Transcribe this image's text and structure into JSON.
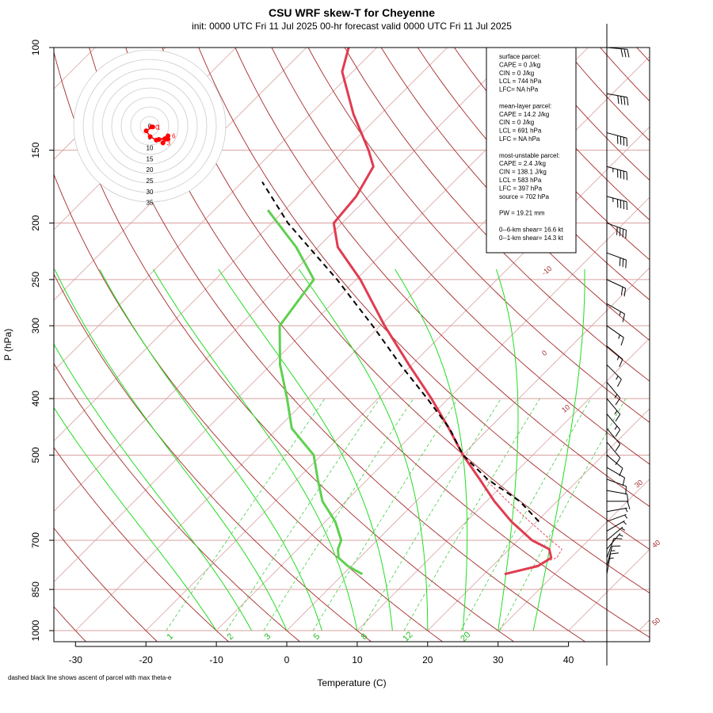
{
  "title": "CSU WRF skew-T for Cheyenne",
  "subtitle": "init: 0000 UTC Fri 11 Jul 2025    00-hr forecast valid 0000 UTC Fri 11 Jul 2025",
  "footnote": "dashed black line shows ascent of parcel with max theta-e",
  "chart_data": {
    "type": "skewt",
    "xlabel": "Temperature (C)",
    "ylabel": "P (hPa)",
    "xlim": [
      -33,
      45
    ],
    "ylim": [
      1000,
      100
    ],
    "x_ticks": [
      -30,
      -20,
      -10,
      0,
      10,
      20,
      30,
      40
    ],
    "p_ticks": [
      100,
      150,
      200,
      250,
      300,
      400,
      500,
      700,
      850,
      1000
    ],
    "isobars": [
      100,
      150,
      200,
      250,
      300,
      400,
      500,
      700,
      850,
      1000
    ],
    "dry_adiabat_labels": [
      "-10",
      "0",
      "10",
      "30",
      "40",
      "50"
    ],
    "mixing_ratio_labels": [
      "1",
      "2",
      "3",
      "5",
      "8",
      "12",
      "20"
    ],
    "temperature": [
      {
        "p": 800,
        "t": 22.9
      },
      {
        "p": 775,
        "t": 26.5
      },
      {
        "p": 750,
        "t": 27.2
      },
      {
        "p": 725,
        "t": 25.7
      },
      {
        "p": 700,
        "t": 22.0
      },
      {
        "p": 650,
        "t": 16.4
      },
      {
        "p": 600,
        "t": 11.1
      },
      {
        "p": 550,
        "t": 5.9
      },
      {
        "p": 500,
        "t": 0.1
      },
      {
        "p": 450,
        "t": -5.7
      },
      {
        "p": 400,
        "t": -12.4
      },
      {
        "p": 350,
        "t": -20.4
      },
      {
        "p": 300,
        "t": -29.4
      },
      {
        "p": 250,
        "t": -39.4
      },
      {
        "p": 220,
        "t": -47.2
      },
      {
        "p": 200,
        "t": -51.2
      },
      {
        "p": 180,
        "t": -51.8
      },
      {
        "p": 160,
        "t": -53.6
      },
      {
        "p": 150,
        "t": -56.6
      },
      {
        "p": 130,
        "t": -63.9
      },
      {
        "p": 110,
        "t": -71.5
      },
      {
        "p": 100,
        "t": -74.0
      }
    ],
    "dewpoint": [
      {
        "p": 800,
        "t": 2.7
      },
      {
        "p": 775,
        "t": -0.5
      },
      {
        "p": 750,
        "t": -3.0
      },
      {
        "p": 725,
        "t": -4.3
      },
      {
        "p": 700,
        "t": -5.1
      },
      {
        "p": 650,
        "t": -8.6
      },
      {
        "p": 600,
        "t": -13.3
      },
      {
        "p": 550,
        "t": -17.1
      },
      {
        "p": 500,
        "t": -21.1
      },
      {
        "p": 450,
        "t": -28.0
      },
      {
        "p": 400,
        "t": -32.9
      },
      {
        "p": 350,
        "t": -38.7
      },
      {
        "p": 300,
        "t": -44.3
      },
      {
        "p": 250,
        "t": -46.0
      },
      {
        "p": 220,
        "t": -53.1
      },
      {
        "p": 190,
        "t": -62.4
      }
    ],
    "parcel_theta_e": [
      {
        "p": 650,
        "t": 20.3
      },
      {
        "p": 600,
        "t": 14.7
      },
      {
        "p": 550,
        "t": 7.0
      },
      {
        "p": 500,
        "t": 0.1
      },
      {
        "p": 450,
        "t": -5.6
      },
      {
        "p": 400,
        "t": -13.0
      },
      {
        "p": 350,
        "t": -21.6
      },
      {
        "p": 300,
        "t": -31.1
      },
      {
        "p": 250,
        "t": -42.7
      },
      {
        "p": 200,
        "t": -57.7
      },
      {
        "p": 170,
        "t": -67.2
      }
    ],
    "parcel_surface": [
      {
        "p": 800,
        "t": 22.9
      },
      {
        "p": 775,
        "t": 26.0
      },
      {
        "p": 750,
        "t": 28.0
      },
      {
        "p": 725,
        "t": 27.5
      },
      {
        "p": 700,
        "t": 24.7
      },
      {
        "p": 650,
        "t": 19.0
      },
      {
        "p": 600,
        "t": 13.0
      },
      {
        "p": 550,
        "t": 6.7
      }
    ],
    "hodograph": {
      "rings": [
        "0",
        "5",
        "10",
        "15",
        "20",
        "25",
        "30",
        "35"
      ],
      "points": [
        {
          "label": "0",
          "u": 0.7,
          "v": -0.4
        },
        {
          "label": "1",
          "u": 1.2,
          "v": -0.4
        },
        {
          "label": "",
          "u": -1.4,
          "v": -1.9
        },
        {
          "label": "",
          "u": 0.2,
          "v": -4.2
        },
        {
          "label": "1",
          "u": 2.6,
          "v": -5.6
        },
        {
          "label": "2",
          "u": 3.6,
          "v": -5.3
        },
        {
          "label": "",
          "u": 6.0,
          "v": -5.0
        },
        {
          "label": "6",
          "u": 7.2,
          "v": -3.9
        },
        {
          "label": "",
          "u": 7.2,
          "v": -5.2
        },
        {
          "label": "3",
          "u": 5.2,
          "v": -6.7
        }
      ]
    },
    "info_box": [
      "surface parcel:",
      "CAPE = 0 J/kg",
      "CIN = 0 J/kg",
      "LCL = 744 hPa",
      "LFC= NA hPa",
      "",
      "mean-layer parcel:",
      "CAPE = 14.2 J/kg",
      "CIN = 0 J/kg",
      "LCL = 691 hPa",
      "LFC = NA hPa",
      "",
      "most-unstable parcel:",
      "CAPE = 2.4 J/kg",
      "CIN = 138.1 J/kg",
      "LCL = 583 hPa",
      "LFC = 397 hPa",
      "source = 702 hPa",
      "",
      "PW =  19.21 mm",
      "",
      "0--6-km shear= 16.6 kt",
      "0--1-km shear= 14.3 kt"
    ],
    "wind_barbs": [
      {
        "p": 100,
        "dir": 275,
        "spd": 30
      },
      {
        "p": 120,
        "dir": 280,
        "spd": 40
      },
      {
        "p": 140,
        "dir": 285,
        "spd": 40
      },
      {
        "p": 160,
        "dir": 285,
        "spd": 45
      },
      {
        "p": 180,
        "dir": 285,
        "spd": 45
      },
      {
        "p": 200,
        "dir": 290,
        "spd": 40
      },
      {
        "p": 225,
        "dir": 290,
        "spd": 30
      },
      {
        "p": 250,
        "dir": 295,
        "spd": 20
      },
      {
        "p": 275,
        "dir": 300,
        "spd": 15
      },
      {
        "p": 300,
        "dir": 305,
        "spd": 15
      },
      {
        "p": 325,
        "dir": 310,
        "spd": 15
      },
      {
        "p": 350,
        "dir": 315,
        "spd": 15
      },
      {
        "p": 375,
        "dir": 320,
        "spd": 15
      },
      {
        "p": 400,
        "dir": 320,
        "spd": 15
      },
      {
        "p": 425,
        "dir": 320,
        "spd": 15
      },
      {
        "p": 450,
        "dir": 320,
        "spd": 10
      },
      {
        "p": 475,
        "dir": 320,
        "spd": 10
      },
      {
        "p": 500,
        "dir": 310,
        "spd": 10
      },
      {
        "p": 525,
        "dir": 300,
        "spd": 10
      },
      {
        "p": 550,
        "dir": 290,
        "spd": 10
      },
      {
        "p": 575,
        "dir": 280,
        "spd": 10
      },
      {
        "p": 600,
        "dir": 270,
        "spd": 10
      },
      {
        "p": 625,
        "dir": 260,
        "spd": 5
      },
      {
        "p": 650,
        "dir": 250,
        "spd": 5
      },
      {
        "p": 675,
        "dir": 240,
        "spd": 5
      },
      {
        "p": 700,
        "dir": 230,
        "spd": 5
      },
      {
        "p": 725,
        "dir": 220,
        "spd": 5
      },
      {
        "p": 750,
        "dir": 200,
        "spd": 10
      },
      {
        "p": 775,
        "dir": 195,
        "spd": 15
      },
      {
        "p": 800,
        "dir": 190,
        "spd": 15
      }
    ],
    "colors": {
      "temperature": "#e03c50",
      "dewpoint": "#5fd050",
      "parcel": "#000000",
      "isotherm": "#d9a0a0",
      "isobar": "#d9a0a0",
      "dry_adiabat": "#a52a2a",
      "moist_adiabat": "#22dd22",
      "mixing_ratio": "#44cc44"
    }
  }
}
